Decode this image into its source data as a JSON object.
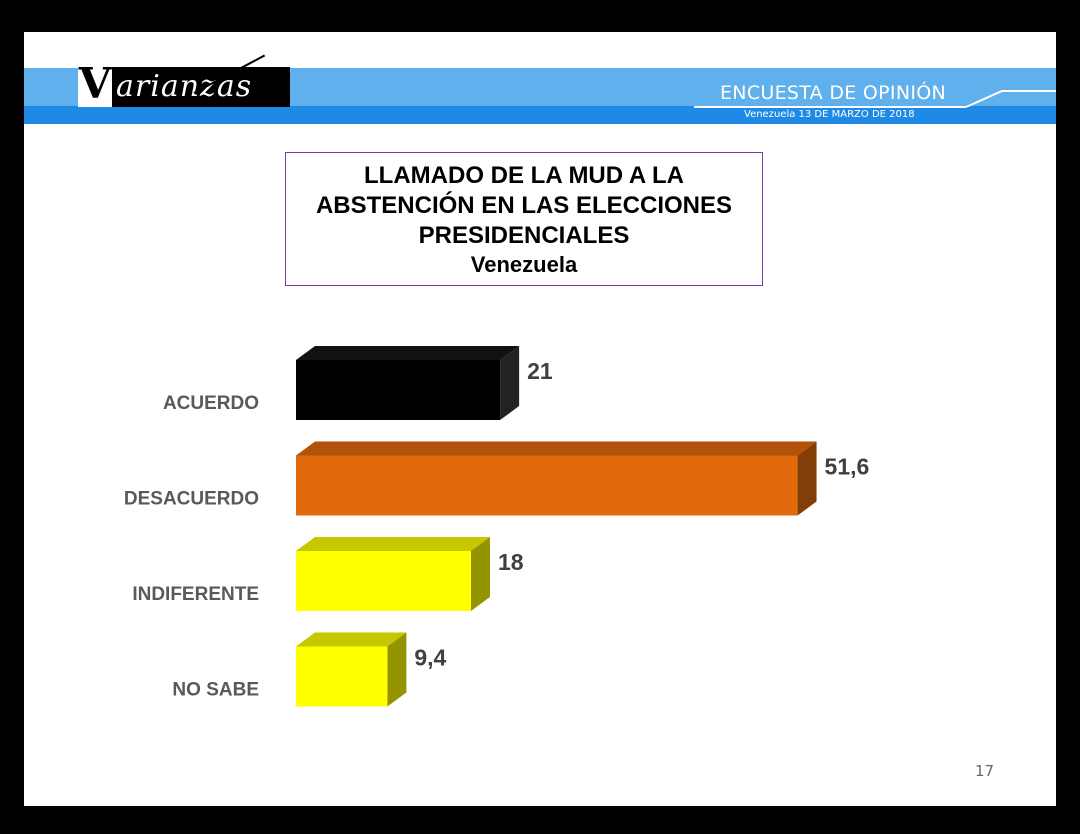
{
  "header": {
    "logo_text": "arianzas",
    "logo_initial": "V",
    "title": "ENCUESTA DE OPINIÓN",
    "subtitle": "Venezuela  13  DE  MARZO DE 2018"
  },
  "title_box": {
    "line1": "LLAMADO DE LA MUD A LA",
    "line2": "ABSTENCIÓN EN LAS ELECCIONES",
    "line3": "PRESIDENCIALES",
    "subtitle": "Venezuela"
  },
  "chart_data": {
    "type": "bar",
    "orientation": "horizontal",
    "title": "LLAMADO DE LA MUD A LA ABSTENCIÓN EN LAS ELECCIONES PRESIDENCIALES",
    "subtitle": "Venezuela",
    "categories": [
      "ACUERDO",
      "DESACUERDO",
      "INDIFERENTE",
      "NO SABE"
    ],
    "values": [
      21,
      51.6,
      18,
      9.4
    ],
    "value_labels": [
      "21",
      "51,6",
      "18",
      "9,4"
    ],
    "bar_colors": [
      "#000000",
      "#e2690c",
      "#ffff00",
      "#ffff00"
    ],
    "xlim": [
      0,
      55
    ],
    "grid": false,
    "style": "3d"
  },
  "footer": {
    "page_number": "17"
  }
}
